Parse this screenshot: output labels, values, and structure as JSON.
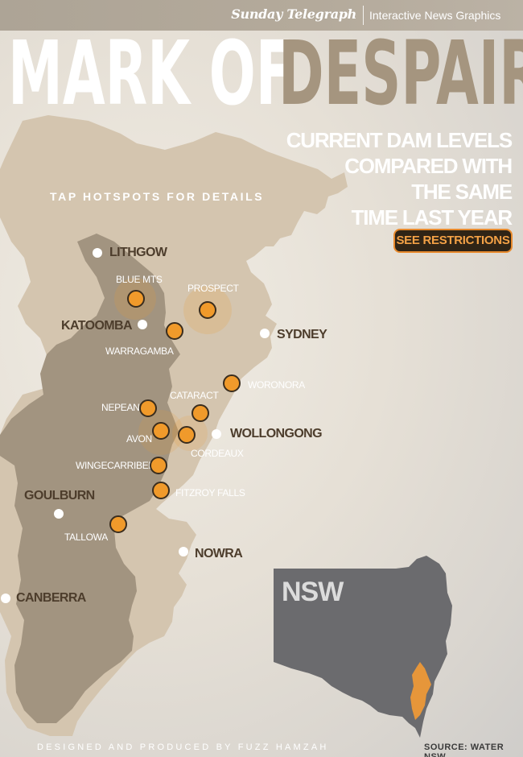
{
  "header": {
    "brand": "Sunday Telegraph",
    "brand_subtitle": "Interactive News Graphics"
  },
  "title": {
    "part1": "MARK OF",
    "part2": "DESPAIR"
  },
  "subtitle_lines": [
    "CURRENT DAM LEVELS",
    "COMPARED WITH",
    "THE SAME",
    "TIME LAST YEAR"
  ],
  "instruction": "TAP HOTSPOTS FOR DETAILS",
  "restrictions_button": "SEE RESTRICTIONS",
  "towns": {
    "lithgow": "LITHGOW",
    "katoomba": "KATOOMBA",
    "sydney": "SYDNEY",
    "wollongong": "WOLLONGONG",
    "goulburn": "GOULBURN",
    "nowra": "NOWRA",
    "canberra": "CANBERRA"
  },
  "dams": {
    "blue_mts": "BLUE MTS",
    "prospect": "PROSPECT",
    "warragamba": "WARRAGAMBA",
    "woronora": "WORONORA",
    "cataract": "CATARACT",
    "nepean": "NEPEAN",
    "avon": "AVON",
    "cordeaux": "CORDEAUX",
    "wingecarribee": "WINGECARRIBEE",
    "fitzroy_falls": "FITZROY FALLS",
    "tallowa": "TALLOWA"
  },
  "inset": {
    "label": "NSW"
  },
  "footer": {
    "credit": "DESIGNED AND PRODUCED BY FUZZ HAMZAH",
    "source": "SOURCE: WATER NSW"
  },
  "colors": {
    "accent": "#f09a2b",
    "region_light": "#d4c5af",
    "region_dark": "#a29480",
    "title_dark": "#a5957f",
    "inset": "#6b6b6e"
  }
}
